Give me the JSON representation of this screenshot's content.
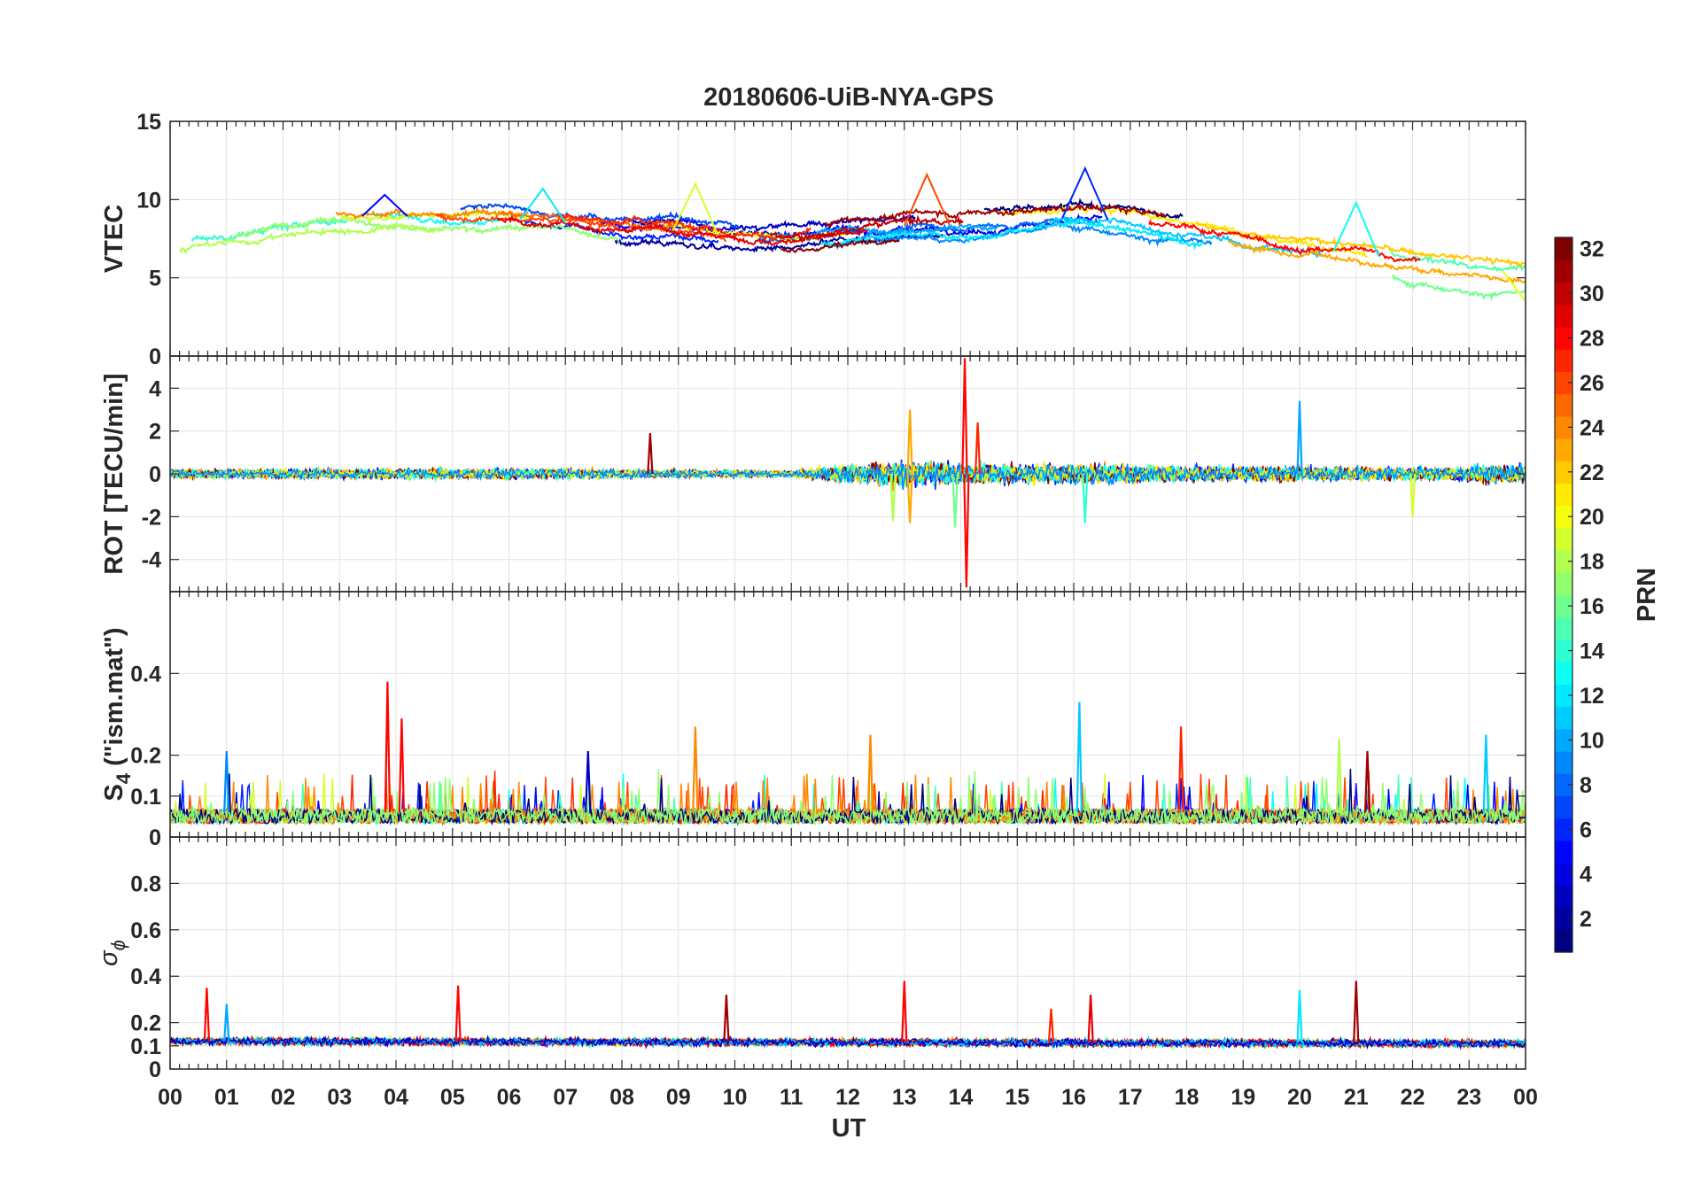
{
  "chart_data": {
    "type": "line",
    "title": "20180606-UiB-NYA-GPS",
    "xlabel": "UT",
    "x_range_hours": [
      0,
      24
    ],
    "x_tick_labels": [
      "00",
      "01",
      "02",
      "03",
      "04",
      "05",
      "06",
      "07",
      "08",
      "09",
      "10",
      "11",
      "12",
      "13",
      "14",
      "15",
      "16",
      "17",
      "18",
      "19",
      "20",
      "21",
      "22",
      "23",
      "00"
    ],
    "grid": true,
    "colorbar": {
      "label": "PRN",
      "range": [
        1,
        32
      ],
      "ticks": [
        2,
        4,
        6,
        8,
        10,
        12,
        14,
        16,
        18,
        20,
        22,
        24,
        26,
        28,
        30,
        32
      ],
      "colormap": "jet",
      "position": "right"
    },
    "panels": [
      {
        "name": "vtec",
        "ylabel": "VTEC",
        "ylim": [
          0,
          15
        ],
        "yticks": [
          0,
          5,
          10,
          15
        ],
        "ytick_labels": [
          "0",
          "5",
          "10",
          "15"
        ],
        "baseline": [
          [
            0,
            7.6
          ],
          [
            1,
            7.9
          ],
          [
            2,
            8.5
          ],
          [
            3,
            8.9
          ],
          [
            4,
            9.0
          ],
          [
            5,
            8.7
          ],
          [
            6,
            8.8
          ],
          [
            7,
            8.5
          ],
          [
            8,
            8.1
          ],
          [
            9,
            8.0
          ],
          [
            10,
            7.6
          ],
          [
            11,
            7.4
          ],
          [
            12,
            7.9
          ],
          [
            13,
            8.3
          ],
          [
            14,
            8.4
          ],
          [
            15,
            8.6
          ],
          [
            16,
            8.9
          ],
          [
            17,
            8.6
          ],
          [
            18,
            8.0
          ],
          [
            19,
            7.3
          ],
          [
            20,
            6.8
          ],
          [
            21,
            6.6
          ],
          [
            22,
            6.0
          ],
          [
            23,
            5.6
          ],
          [
            24,
            5.3
          ]
        ],
        "features": [
          {
            "x": 3.8,
            "y": 10.3
          },
          {
            "x": 6.6,
            "y": 10.7
          },
          {
            "x": 9.3,
            "y": 11.0
          },
          {
            "x": 13.4,
            "y": 11.6
          },
          {
            "x": 16.2,
            "y": 12.0
          },
          {
            "x": 21.0,
            "y": 9.8
          },
          {
            "x": 24.0,
            "y": 3.5
          }
        ]
      },
      {
        "name": "rot",
        "ylabel": "ROT [TECU/min]",
        "ylim": [
          -5.5,
          5.5
        ],
        "yticks": [
          -4,
          -2,
          0,
          2,
          4
        ],
        "ytick_labels": [
          "-4",
          "-2",
          "0",
          "2",
          "4"
        ],
        "baseline": [
          [
            0,
            0
          ],
          [
            24,
            0
          ]
        ],
        "noise_envelope": [
          [
            0,
            0.4
          ],
          [
            5,
            0.5
          ],
          [
            8,
            0.4
          ],
          [
            11,
            0.3
          ],
          [
            12,
            0.9
          ],
          [
            13,
            1.2
          ],
          [
            14,
            1.0
          ],
          [
            15,
            0.9
          ],
          [
            16,
            1.0
          ],
          [
            18,
            0.7
          ],
          [
            20,
            0.7
          ],
          [
            22,
            0.6
          ],
          [
            24,
            0.9
          ]
        ],
        "spikes": [
          {
            "x": 8.5,
            "y": 1.9,
            "prn": 31
          },
          {
            "x": 12.8,
            "y": -2.2,
            "prn": 18
          },
          {
            "x": 13.1,
            "y": 3.0,
            "prn": 23
          },
          {
            "x": 13.1,
            "y": -2.3,
            "prn": 23
          },
          {
            "x": 14.07,
            "y": 5.4,
            "prn": 28
          },
          {
            "x": 14.1,
            "y": -5.3,
            "prn": 28
          },
          {
            "x": 13.9,
            "y": -2.5,
            "prn": 16
          },
          {
            "x": 14.3,
            "y": 2.4,
            "prn": 27
          },
          {
            "x": 16.2,
            "y": -2.3,
            "prn": 14
          },
          {
            "x": 20.0,
            "y": 3.4,
            "prn": 10
          },
          {
            "x": 22.0,
            "y": -2.0,
            "prn": 19
          }
        ]
      },
      {
        "name": "s4",
        "ylabel": "S",
        "ylabel_subscript": "4",
        "ylabel_suffix": " (\"ism.mat\")",
        "ylim": [
          0,
          0.6
        ],
        "yticks": [
          0,
          0.1,
          0.2,
          0.4
        ],
        "ytick_labels": [
          "0",
          "0.1",
          "0.2",
          "0.4"
        ],
        "baseline": [
          [
            0,
            0.06
          ],
          [
            24,
            0.06
          ]
        ],
        "spikes": [
          {
            "x": 3.85,
            "y": 0.38,
            "prn": 28
          },
          {
            "x": 4.1,
            "y": 0.29,
            "prn": 28
          },
          {
            "x": 9.3,
            "y": 0.27,
            "prn": 24
          },
          {
            "x": 12.4,
            "y": 0.25,
            "prn": 24
          },
          {
            "x": 16.1,
            "y": 0.33,
            "prn": 11
          },
          {
            "x": 17.9,
            "y": 0.27,
            "prn": 27
          },
          {
            "x": 20.7,
            "y": 0.24,
            "prn": 18
          },
          {
            "x": 23.3,
            "y": 0.25,
            "prn": 11
          },
          {
            "x": 1.0,
            "y": 0.21,
            "prn": 9
          },
          {
            "x": 7.4,
            "y": 0.21,
            "prn": 3
          },
          {
            "x": 21.2,
            "y": 0.21,
            "prn": 31
          }
        ]
      },
      {
        "name": "sigma_phi",
        "ylabel": "σ",
        "ylabel_subscript": "ϕ",
        "ylim": [
          0,
          1
        ],
        "yticks": [
          0,
          0.1,
          0.2,
          0.4,
          0.6,
          0.8
        ],
        "ytick_labels": [
          "0",
          "0.1",
          "0.2",
          "0.4",
          "0.6",
          "0.8"
        ],
        "baseline": [
          [
            0,
            0.12
          ],
          [
            24,
            0.11
          ]
        ],
        "spikes": [
          {
            "x": 0.65,
            "y": 0.35,
            "prn": 28
          },
          {
            "x": 1.0,
            "y": 0.28,
            "prn": 10
          },
          {
            "x": 5.1,
            "y": 0.36,
            "prn": 28
          },
          {
            "x": 9.85,
            "y": 0.32,
            "prn": 31
          },
          {
            "x": 13.0,
            "y": 0.38,
            "prn": 28
          },
          {
            "x": 16.3,
            "y": 0.32,
            "prn": 29
          },
          {
            "x": 15.6,
            "y": 0.26,
            "prn": 27
          },
          {
            "x": 20.0,
            "y": 0.34,
            "prn": 12
          },
          {
            "x": 21.0,
            "y": 0.38,
            "prn": 31
          }
        ]
      }
    ]
  }
}
